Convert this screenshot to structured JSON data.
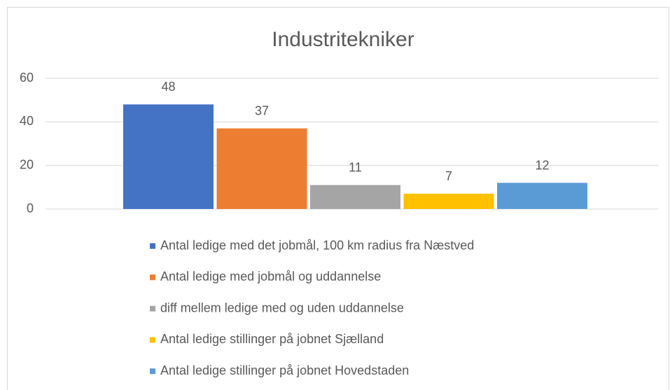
{
  "chart_data": {
    "type": "bar",
    "title": "Industritekniker",
    "categories": [
      null
    ],
    "series": [
      {
        "name": "Antal ledige med det jobmål, 100 km radius fra Næstved",
        "color": "#4472c4",
        "values": [
          48
        ]
      },
      {
        "name": "Antal ledige med jobmål og uddannelse",
        "color": "#ed7d31",
        "values": [
          37
        ]
      },
      {
        "name": "diff mellem ledige med og uden uddannelse",
        "color": "#a5a5a5",
        "values": [
          11
        ]
      },
      {
        "name": "Antal ledige stillinger på jobnet Sjælland",
        "color": "#ffc000",
        "values": [
          7
        ]
      },
      {
        "name": "Antal ledige stillinger på jobnet Hovedstaden",
        "color": "#5b9bd5",
        "values": [
          12
        ]
      }
    ],
    "ylim": [
      0,
      60
    ],
    "yticks": [
      0,
      20,
      40,
      60
    ],
    "grid": true,
    "legend": "bottom"
  }
}
